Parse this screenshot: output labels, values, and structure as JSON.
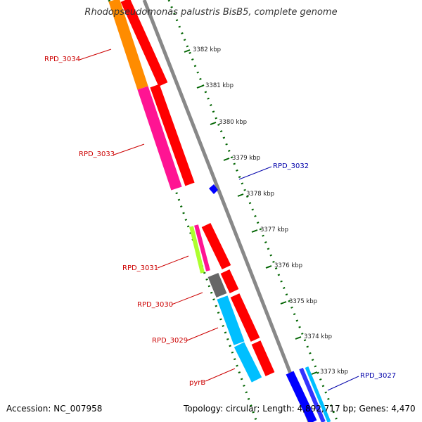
{
  "title": "Rhodopseudomonas palustris BisB5, complete genome",
  "footer": {
    "accession": "Accession: NC_007958",
    "summary": "Topology: circular; Length: 4,892,717 bp; Genes: 4,470"
  },
  "ticks": [
    "3382 kbp",
    "3381 kbp",
    "3380 kbp",
    "3379 kbp",
    "3378 kbp",
    "3377 kbp",
    "3376 kbp",
    "3375 kbp",
    "3374 kbp",
    "3373 kbp"
  ],
  "genes_left": [
    {
      "label": "RPD_3034",
      "color": "#cc0000"
    },
    {
      "label": "RPD_3033",
      "color": "#cc0000"
    },
    {
      "label": "RPD_3031",
      "color": "#cc0000"
    },
    {
      "label": "RPD_3030",
      "color": "#cc0000"
    },
    {
      "label": "RPD_3029",
      "color": "#cc0000"
    },
    {
      "label": "pyrB",
      "color": "#cc0000"
    }
  ],
  "genes_right": [
    {
      "label": "RPD_3032",
      "color": "#0000aa"
    },
    {
      "label": "RPD_3027",
      "color": "#0000aa"
    }
  ],
  "colors": {
    "cds": "#ff0000",
    "orange": "#ff8c00",
    "pink": "#ff1493",
    "lime": "#adff2f",
    "gray": "#666666",
    "cyan": "#00bfff",
    "blue": "#0000ff",
    "backbone": "#888888",
    "dots": "#006400"
  }
}
